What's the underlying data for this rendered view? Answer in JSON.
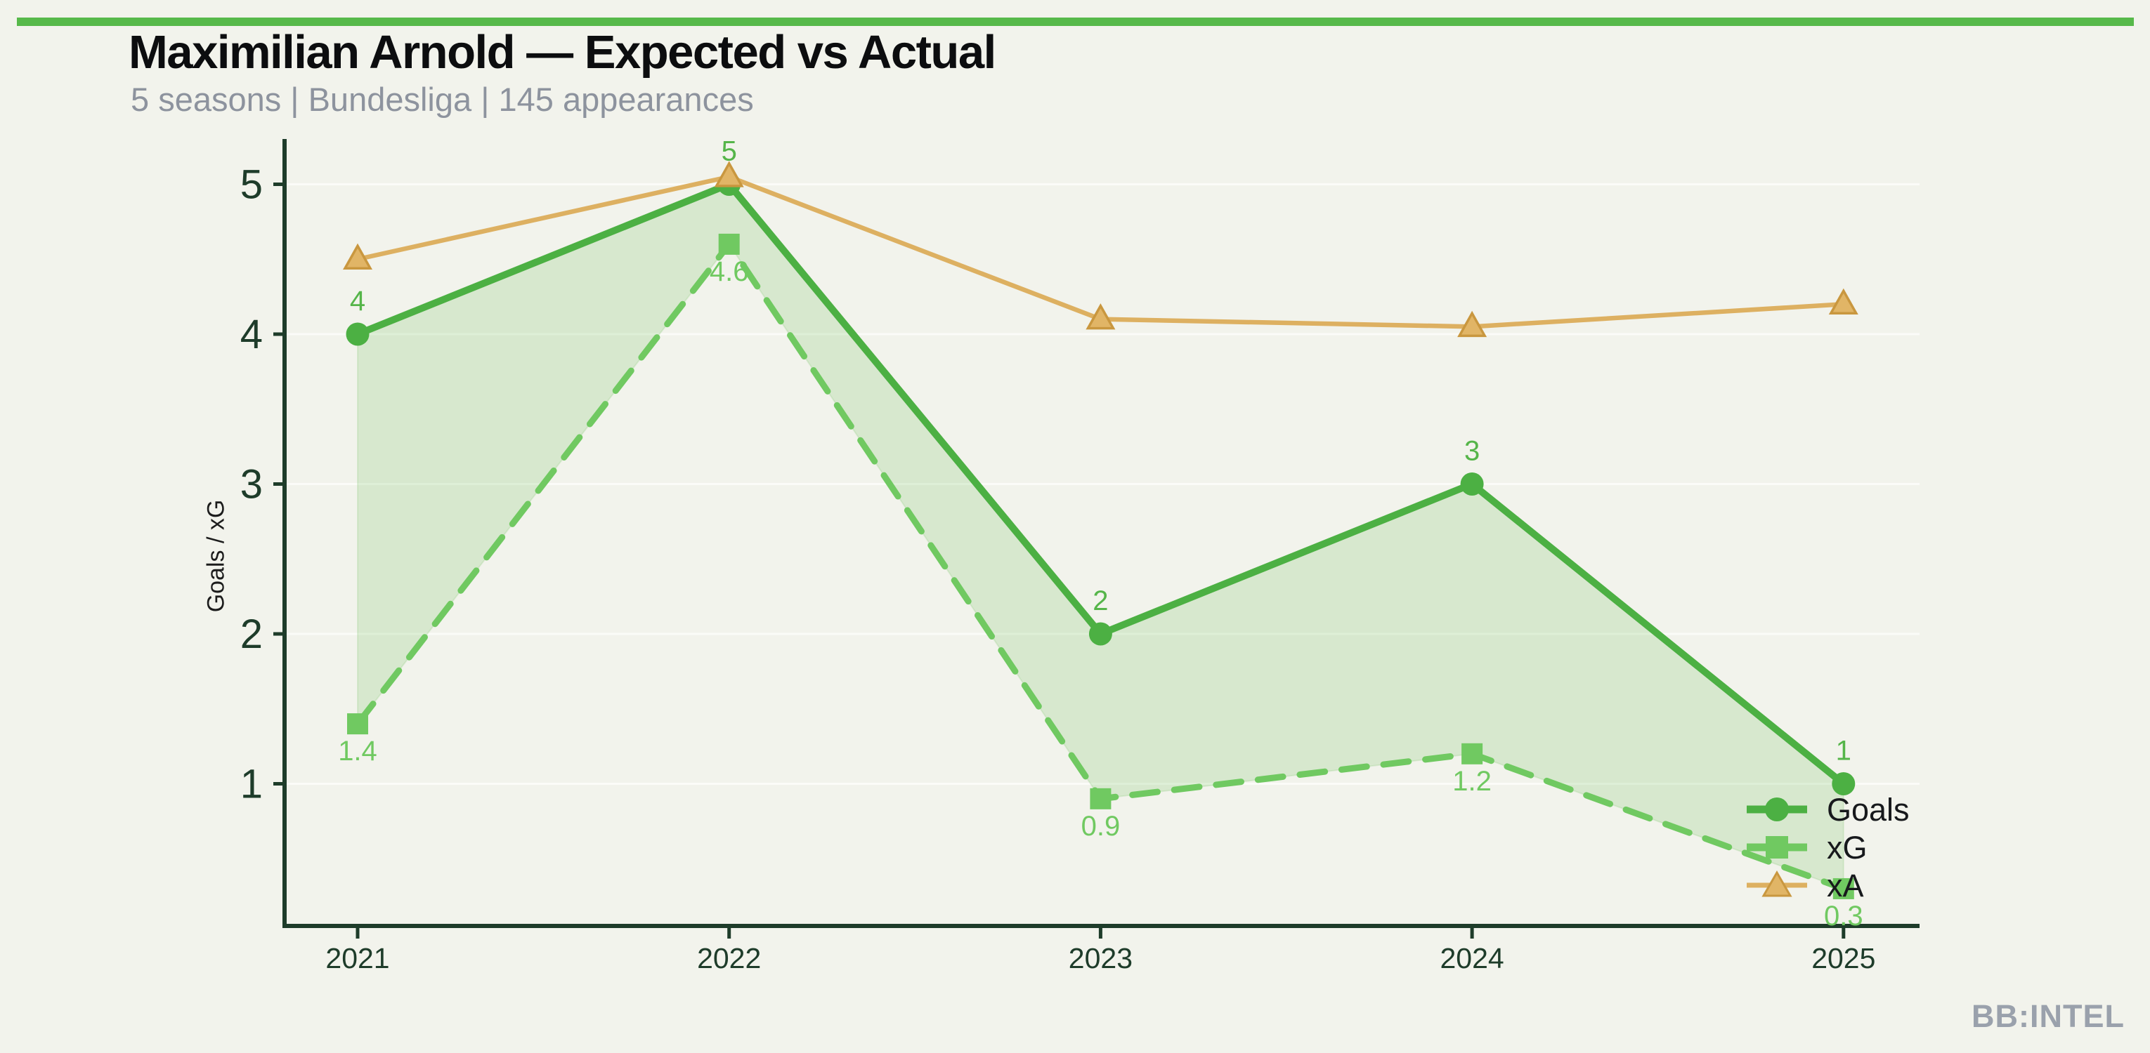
{
  "page": {
    "watermark": "BB:INTEL"
  },
  "header": {
    "title": "Maximilian Arnold — Expected vs Actual",
    "subtitle": "5 seasons | Bundesliga | 145 appearances"
  },
  "colors": {
    "background": "#f2f3ec",
    "accent_bar": "#57b94a",
    "axis": "#1e3c2a",
    "tick_label": "#1e3c2a",
    "title": "#0c0d0f",
    "subtitle": "#8d939e",
    "watermark": "#9aa1ac",
    "gridline": "rgba(255,255,255,0.65)"
  },
  "chart_data": {
    "type": "line",
    "title": "Maximilian Arnold — Expected vs Actual",
    "subtitle": "5 seasons | Bundesliga | 145 appearances",
    "categories": [
      "2021",
      "2022",
      "2023",
      "2024",
      "2025"
    ],
    "xlabel": "",
    "ylabel": "Goals / xG",
    "ylim": [
      0,
      5.3
    ],
    "yticks": [
      1,
      2,
      3,
      4,
      5
    ],
    "grid": "faint horizontal gridlines at integer y values",
    "legend_position": "lower right",
    "series": [
      {
        "name": "Goals",
        "values": [
          4,
          5,
          2,
          3,
          1
        ],
        "point_labels": [
          "4",
          "5",
          "2",
          "3",
          "1"
        ],
        "color": "#4cb043",
        "label_color": "#55b549",
        "line_style": "solid",
        "marker": "circle"
      },
      {
        "name": "xG",
        "values": [
          1.4,
          4.6,
          0.9,
          1.2,
          0.3
        ],
        "point_labels": [
          "1.4",
          "4.6",
          "0.9",
          "1.2",
          "0.3"
        ],
        "color": "#70c961",
        "label_color": "#70c961",
        "line_style": "dashed",
        "marker": "square"
      },
      {
        "name": "xA",
        "values": [
          4.5,
          5.05,
          4.1,
          4.05,
          4.2
        ],
        "point_labels": [],
        "color": "#ddb061",
        "label_color": "#ddb061",
        "line_style": "solid",
        "marker": "triangle",
        "marker_fill": "#e1b566",
        "marker_stroke": "#c9973f"
      }
    ],
    "fill_between": {
      "upper": "Goals",
      "lower": "xG",
      "color": "rgba(119,194,98,0.22)"
    }
  }
}
